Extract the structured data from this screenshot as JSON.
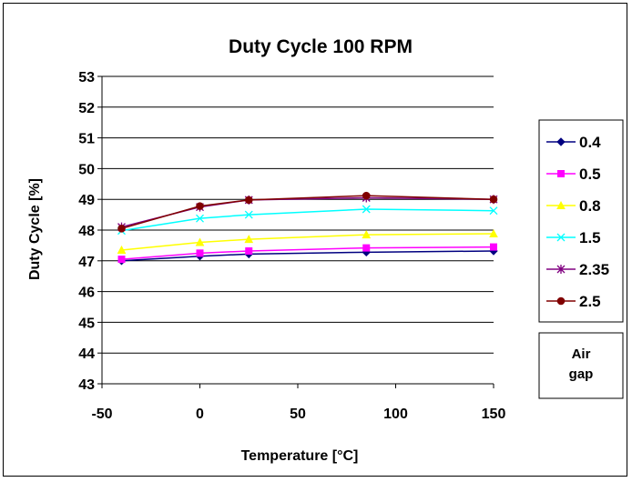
{
  "chart_data": {
    "type": "line",
    "title": "Duty Cycle 100 RPM",
    "xlabel": "Temperature [°C]",
    "ylabel": "Duty Cycle [%]",
    "xlim": [
      -50,
      150
    ],
    "ylim": [
      43,
      53
    ],
    "x_ticks": [
      "-50",
      "0",
      "50",
      "100",
      "150"
    ],
    "y_ticks": [
      "43",
      "44",
      "45",
      "46",
      "47",
      "48",
      "49",
      "50",
      "51",
      "52",
      "53"
    ],
    "grid": "horizontal",
    "legend_position": "right",
    "legend_title": "Air gap",
    "x": [
      -40,
      0,
      25,
      85,
      150
    ],
    "series": [
      {
        "name": "0.4",
        "color": "#000080",
        "marker": "diamond",
        "values": [
          47.0,
          47.15,
          47.22,
          47.28,
          47.32
        ]
      },
      {
        "name": "0.5",
        "color": "#FF00FF",
        "marker": "square",
        "values": [
          47.05,
          47.25,
          47.32,
          47.42,
          47.45
        ]
      },
      {
        "name": "0.8",
        "color": "#FFFF00",
        "marker": "triangle",
        "values": [
          47.35,
          47.6,
          47.7,
          47.85,
          47.88
        ]
      },
      {
        "name": "1.5",
        "color": "#00FFFF",
        "marker": "x",
        "values": [
          47.98,
          48.38,
          48.5,
          48.68,
          48.63
        ]
      },
      {
        "name": "2.35",
        "color": "#800080",
        "marker": "star",
        "values": [
          48.1,
          48.75,
          48.98,
          49.05,
          49.0
        ]
      },
      {
        "name": "2.5",
        "color": "#800000",
        "marker": "circle",
        "values": [
          48.05,
          48.78,
          48.98,
          49.12,
          49.0
        ]
      }
    ]
  }
}
